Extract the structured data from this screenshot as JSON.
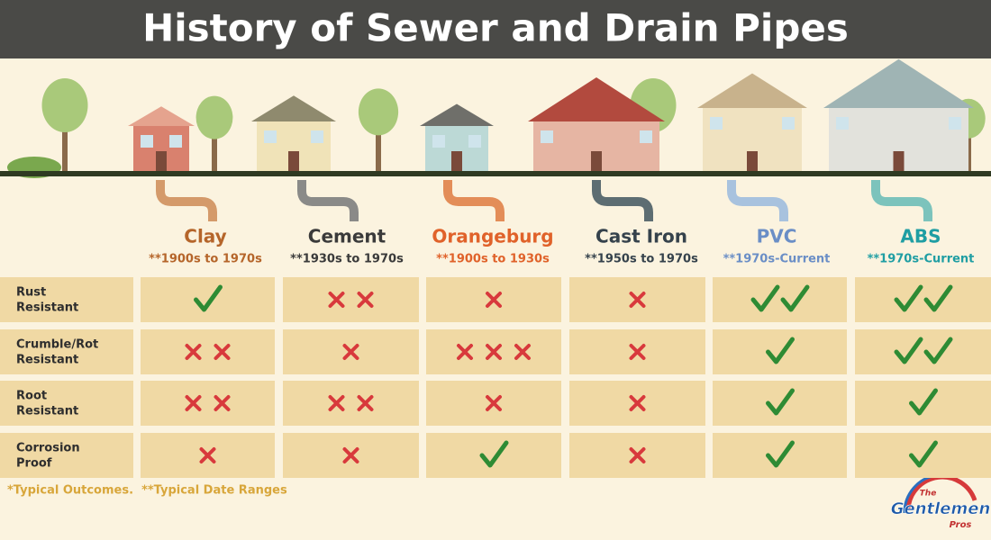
{
  "header": {
    "title": "History of Sewer and Drain Pipes"
  },
  "columns": [
    {
      "name": "Clay",
      "dates": "**1900s to 1970s",
      "color": "#b5652a",
      "pipe_color": "#d49a6a"
    },
    {
      "name": "Cement",
      "dates": "**1930s to 1970s",
      "color": "#3a3a3a",
      "pipe_color": "#8a8a88"
    },
    {
      "name": "Orangeburg",
      "dates": "**1900s to 1930s",
      "color": "#e0622a",
      "pipe_color": "#e38d58"
    },
    {
      "name": "Cast Iron",
      "dates": "**1950s to 1970s",
      "color": "#35424c",
      "pipe_color": "#5d6d72"
    },
    {
      "name": "PVC",
      "dates": "**1970s-Current",
      "color": "#6a8ec6",
      "pipe_color": "#a8c2de"
    },
    {
      "name": "ABS",
      "dates": "**1970s-Current",
      "color": "#1f9ea3",
      "pipe_color": "#7cc3bc"
    }
  ],
  "table": {
    "rows": [
      {
        "label": [
          "Rust",
          "Resistant"
        ],
        "cells": [
          {
            "mark": "check",
            "count": 1
          },
          {
            "mark": "cross",
            "count": 2
          },
          {
            "mark": "cross",
            "count": 1
          },
          {
            "mark": "cross",
            "count": 1
          },
          {
            "mark": "check",
            "count": 2
          },
          {
            "mark": "check",
            "count": 2
          }
        ]
      },
      {
        "label": [
          "Crumble/Rot",
          "Resistant"
        ],
        "cells": [
          {
            "mark": "cross",
            "count": 2
          },
          {
            "mark": "cross",
            "count": 1
          },
          {
            "mark": "cross",
            "count": 3
          },
          {
            "mark": "cross",
            "count": 1
          },
          {
            "mark": "check",
            "count": 1
          },
          {
            "mark": "check",
            "count": 2
          }
        ]
      },
      {
        "label": [
          "Root",
          "Resistant"
        ],
        "cells": [
          {
            "mark": "cross",
            "count": 2
          },
          {
            "mark": "cross",
            "count": 2
          },
          {
            "mark": "cross",
            "count": 1
          },
          {
            "mark": "cross",
            "count": 1
          },
          {
            "mark": "check",
            "count": 1
          },
          {
            "mark": "check",
            "count": 1
          }
        ]
      },
      {
        "label": [
          "Corrosion",
          "Proof"
        ],
        "cells": [
          {
            "mark": "cross",
            "count": 1
          },
          {
            "mark": "cross",
            "count": 1
          },
          {
            "mark": "check",
            "count": 1
          },
          {
            "mark": "cross",
            "count": 1
          },
          {
            "mark": "check",
            "count": 1
          },
          {
            "mark": "check",
            "count": 1
          }
        ]
      }
    ]
  },
  "footnote": "*Typical Outcomes.  **Typical Date Ranges",
  "logo": {
    "the": "The",
    "name": "Gentlemen",
    "pros": "Pros"
  }
}
